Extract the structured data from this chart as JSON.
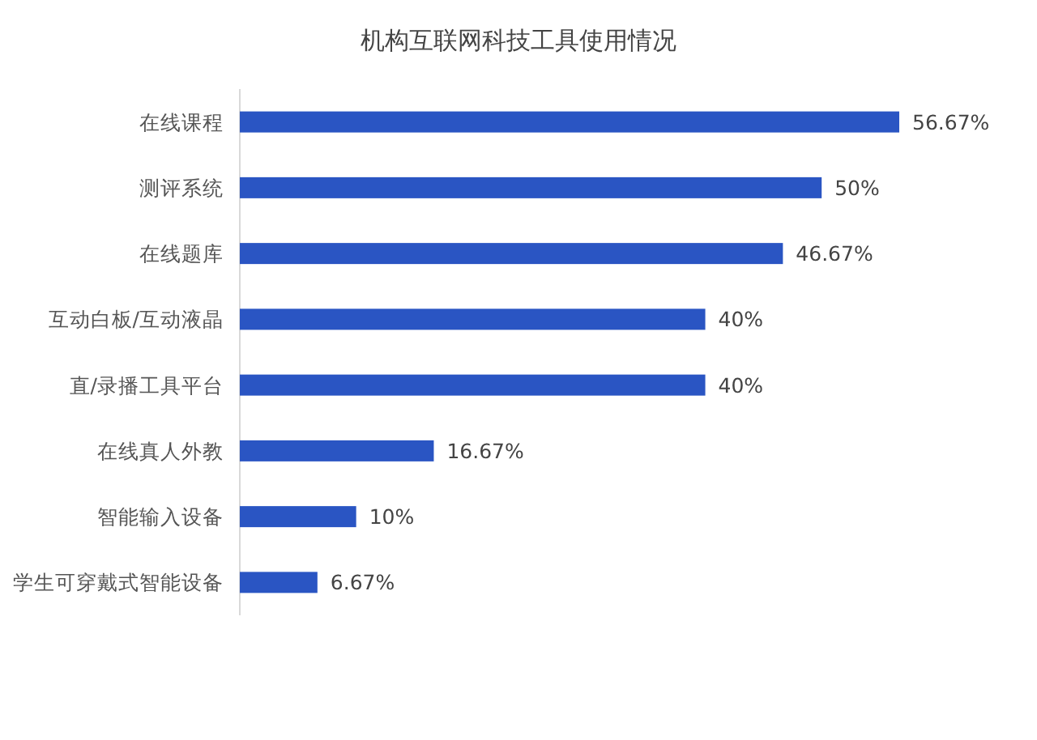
{
  "chart_data": {
    "type": "bar",
    "orientation": "horizontal",
    "title": "机构互联网科技工具使用情况",
    "color": "#2a55c3",
    "categories": [
      "在线课程",
      "测评系统",
      "在线题库",
      "互动白板/互动液晶",
      "直/录播工具平台",
      "在线真人外教",
      "智能输入设备",
      "学生可穿戴式智能设备"
    ],
    "values": [
      56.67,
      50,
      46.67,
      40,
      40,
      16.67,
      10,
      6.67
    ],
    "value_labels": [
      "56.67%",
      "50%",
      "46.67%",
      "40%",
      "40%",
      "16.67%",
      "10%",
      "6.67%"
    ]
  }
}
